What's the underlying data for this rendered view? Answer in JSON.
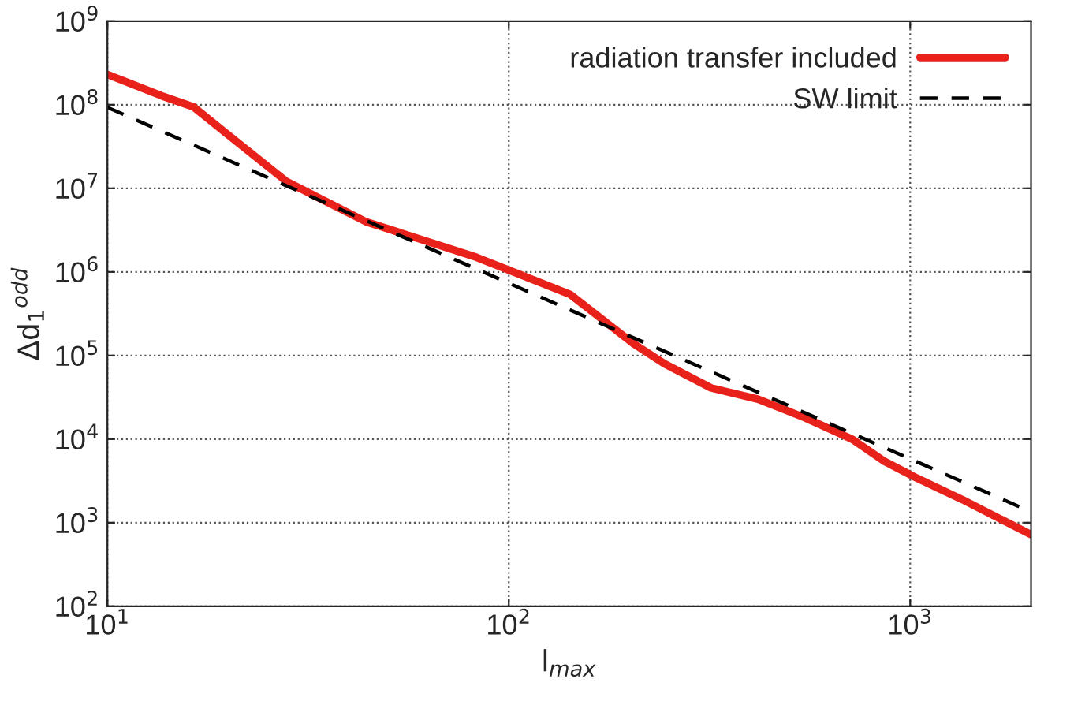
{
  "chart_data": {
    "type": "line",
    "xlabel": "l$_{max}$",
    "ylabel": "Δd$_{1}$$^{odd}$",
    "log": "xy",
    "series": [
      {
        "name": "radiation transfer included",
        "color": "#e8211a",
        "x": [
          10,
          13.7,
          16.4,
          19.6,
          28,
          44,
          83,
          100,
          142,
          204,
          244,
          319,
          418,
          547,
          716,
          858,
          1028,
          1346,
          2000
        ],
        "values": [
          230000000,
          127000000,
          94000000,
          47000000,
          12000000,
          4000000,
          1500000,
          1050000,
          540000,
          140000,
          80000,
          41000,
          30000,
          18000,
          10000,
          5500,
          3500,
          1900,
          720
        ]
      },
      {
        "name": "SW limit",
        "color": "#000000",
        "line_style": "dashed",
        "x": [
          10,
          2000
        ],
        "values": [
          93000000,
          1350
        ]
      }
    ],
    "xlim": [
      10,
      2000
    ],
    "ylim": [
      100,
      1000000000
    ],
    "xticks": [
      {
        "value": 10,
        "label": "10$^{1}$"
      },
      {
        "value": 100,
        "label": "10$^{2}$"
      },
      {
        "value": 1000,
        "label": "10$^{3}$"
      }
    ],
    "yticks": [
      {
        "value": 100,
        "label": "10$^{2}$"
      },
      {
        "value": 1000,
        "label": "10$^{3}$"
      },
      {
        "value": 10000,
        "label": "10$^{4}$"
      },
      {
        "value": 100000,
        "label": "10$^{5}$"
      },
      {
        "value": 1000000,
        "label": "10$^{6}$"
      },
      {
        "value": 10000000,
        "label": "10$^{7}$"
      },
      {
        "value": 100000000,
        "label": "10$^{8}$"
      },
      {
        "value": 1000000000,
        "label": "10$^{9}$"
      }
    ],
    "grid": true,
    "legend": "top right"
  }
}
